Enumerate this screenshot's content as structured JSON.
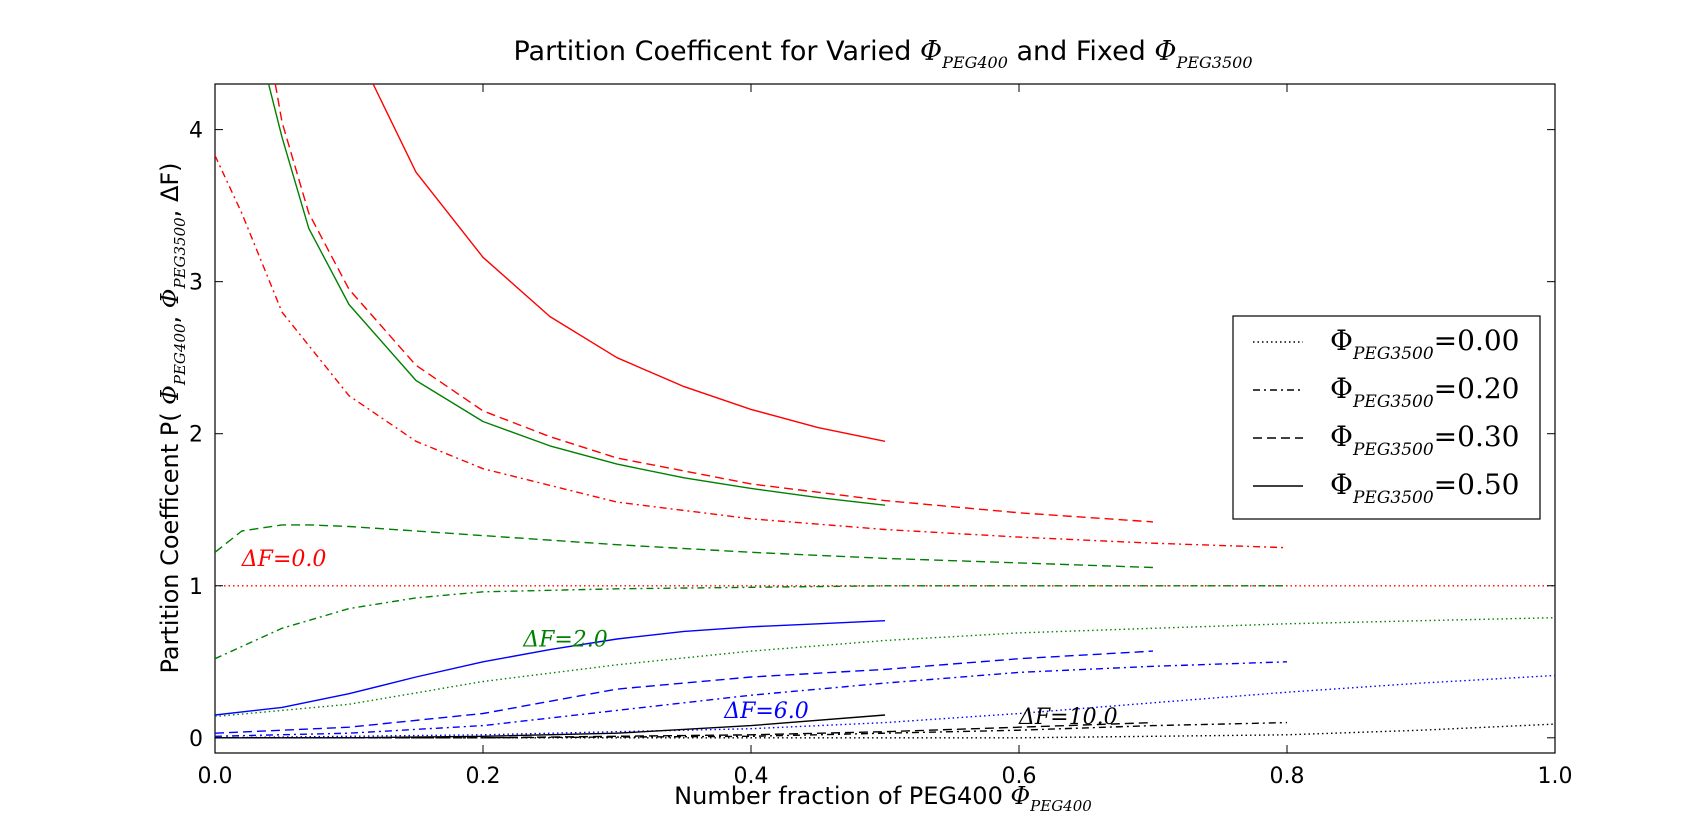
{
  "chart_data": {
    "type": "line",
    "title": {
      "prefix": "Partition Coefficent for Varied ",
      "sym1": "Φ",
      "sub1": "PEG400",
      "middle": " and Fixed ",
      "sym2": "Φ",
      "sub2": "PEG3500"
    },
    "xlabel": {
      "text": "Number fraction of PEG400 ",
      "sym": "Φ",
      "sub": "PEG400"
    },
    "ylabel": {
      "prefix": "Partition Coefficent  P( ",
      "sym1": "Φ",
      "sub1": "PEG400",
      "sep1": ", ",
      "sym2": "Φ",
      "sub2": "PEG3500",
      "suffix": ",  ΔF)"
    },
    "xlim": [
      0.0,
      1.0
    ],
    "ylim": [
      -0.1,
      4.3
    ],
    "xticks": [
      0.0,
      0.2,
      0.4,
      0.6,
      0.8,
      1.0
    ],
    "xtick_labels": [
      "0.0",
      "0.2",
      "0.4",
      "0.6",
      "0.8",
      "1.0"
    ],
    "yticks": [
      0,
      1,
      2,
      3,
      4
    ],
    "ytick_labels": [
      "0",
      "1",
      "2",
      "3",
      "4"
    ],
    "grid": false,
    "legend_position": "right",
    "legend": [
      {
        "sym": "Φ",
        "sub": "PEG3500",
        "eq": "=0.00",
        "style": "dotted"
      },
      {
        "sym": "Φ",
        "sub": "PEG3500",
        "eq": "=0.20",
        "style": "dashdot"
      },
      {
        "sym": "Φ",
        "sub": "PEG3500",
        "eq": "=0.30",
        "style": "dashed"
      },
      {
        "sym": "Φ",
        "sub": "PEG3500",
        "eq": "=0.50",
        "style": "solid"
      }
    ],
    "annotations": [
      {
        "text": "ΔF=0.0",
        "x": 0.02,
        "y": 1.13,
        "color": "#ff0000"
      },
      {
        "text": "ΔF=2.0",
        "x": 0.23,
        "y": 0.6,
        "color": "#008000"
      },
      {
        "text": "ΔF=6.0",
        "x": 0.38,
        "y": 0.13,
        "color": "#0000ff"
      },
      {
        "text": "ΔF=10.0",
        "x": 0.6,
        "y": 0.09,
        "color": "#000000"
      }
    ],
    "series": [
      {
        "deltaF": 0.0,
        "phi3500": 0.0,
        "color": "#ff0000",
        "style": "dotted",
        "x": [
          0.0,
          0.2,
          0.4,
          0.6,
          0.8,
          1.0
        ],
        "y": [
          1.0,
          1.0,
          1.0,
          1.0,
          1.0,
          1.0
        ]
      },
      {
        "deltaF": 0.0,
        "phi3500": 0.2,
        "color": "#ff0000",
        "style": "dashdot",
        "x": [
          0.0,
          0.02,
          0.05,
          0.1,
          0.15,
          0.2,
          0.3,
          0.4,
          0.5,
          0.6,
          0.7,
          0.8
        ],
        "y": [
          3.83,
          3.45,
          2.8,
          2.25,
          1.95,
          1.77,
          1.55,
          1.44,
          1.37,
          1.32,
          1.28,
          1.25
        ]
      },
      {
        "deltaF": 0.0,
        "phi3500": 0.3,
        "color": "#ff0000",
        "style": "dashed",
        "x": [
          0.045,
          0.05,
          0.07,
          0.1,
          0.15,
          0.2,
          0.25,
          0.3,
          0.4,
          0.5,
          0.6,
          0.7
        ],
        "y": [
          4.3,
          4.05,
          3.45,
          2.95,
          2.45,
          2.15,
          1.98,
          1.84,
          1.67,
          1.56,
          1.48,
          1.42
        ]
      },
      {
        "deltaF": 0.0,
        "phi3500": 0.5,
        "color": "#ff0000",
        "style": "solid",
        "x": [
          0.118,
          0.15,
          0.2,
          0.25,
          0.3,
          0.35,
          0.4,
          0.45,
          0.5
        ],
        "y": [
          4.3,
          3.72,
          3.16,
          2.77,
          2.5,
          2.31,
          2.16,
          2.04,
          1.95
        ]
      },
      {
        "deltaF": 2.0,
        "phi3500": 0.0,
        "color": "#008000",
        "style": "dotted",
        "x": [
          0.0,
          0.1,
          0.2,
          0.3,
          0.4,
          0.5,
          0.6,
          0.7,
          0.8,
          0.9,
          1.0
        ],
        "y": [
          0.14,
          0.22,
          0.37,
          0.48,
          0.57,
          0.64,
          0.69,
          0.72,
          0.75,
          0.77,
          0.79
        ]
      },
      {
        "deltaF": 2.0,
        "phi3500": 0.2,
        "color": "#008000",
        "style": "dashdot",
        "x": [
          0.0,
          0.05,
          0.1,
          0.15,
          0.2,
          0.3,
          0.4,
          0.5,
          0.6,
          0.7,
          0.8
        ],
        "y": [
          0.52,
          0.72,
          0.85,
          0.92,
          0.96,
          0.98,
          0.99,
          1.0,
          1.0,
          1.0,
          1.0
        ]
      },
      {
        "deltaF": 2.0,
        "phi3500": 0.3,
        "color": "#008000",
        "style": "dashed",
        "x": [
          0.0,
          0.02,
          0.05,
          0.07,
          0.1,
          0.15,
          0.2,
          0.3,
          0.4,
          0.5,
          0.6,
          0.7
        ],
        "y": [
          1.22,
          1.36,
          1.4,
          1.4,
          1.39,
          1.36,
          1.33,
          1.27,
          1.22,
          1.18,
          1.15,
          1.12
        ]
      },
      {
        "deltaF": 2.0,
        "phi3500": 0.5,
        "color": "#008000",
        "style": "solid",
        "x": [
          0.04,
          0.05,
          0.07,
          0.1,
          0.15,
          0.2,
          0.25,
          0.3,
          0.35,
          0.4,
          0.45,
          0.5
        ],
        "y": [
          4.3,
          3.95,
          3.35,
          2.85,
          2.35,
          2.08,
          1.92,
          1.8,
          1.71,
          1.64,
          1.58,
          1.53
        ]
      },
      {
        "deltaF": 6.0,
        "phi3500": 0.0,
        "color": "#0000ff",
        "style": "dotted",
        "x": [
          0.0,
          0.1,
          0.2,
          0.3,
          0.4,
          0.5,
          0.6,
          0.7,
          0.8,
          0.9,
          1.0
        ],
        "y": [
          0.0,
          0.01,
          0.02,
          0.04,
          0.06,
          0.1,
          0.16,
          0.23,
          0.3,
          0.36,
          0.41
        ]
      },
      {
        "deltaF": 6.0,
        "phi3500": 0.2,
        "color": "#0000ff",
        "style": "dashdot",
        "x": [
          0.0,
          0.1,
          0.2,
          0.3,
          0.4,
          0.5,
          0.6,
          0.7,
          0.8
        ],
        "y": [
          0.01,
          0.03,
          0.08,
          0.18,
          0.28,
          0.36,
          0.43,
          0.47,
          0.5
        ]
      },
      {
        "deltaF": 6.0,
        "phi3500": 0.3,
        "color": "#0000ff",
        "style": "dashed",
        "x": [
          0.0,
          0.1,
          0.2,
          0.25,
          0.3,
          0.4,
          0.5,
          0.6,
          0.7
        ],
        "y": [
          0.03,
          0.07,
          0.16,
          0.24,
          0.32,
          0.4,
          0.45,
          0.52,
          0.57
        ]
      },
      {
        "deltaF": 6.0,
        "phi3500": 0.5,
        "color": "#0000ff",
        "style": "solid",
        "x": [
          0.0,
          0.05,
          0.1,
          0.15,
          0.2,
          0.25,
          0.3,
          0.35,
          0.4,
          0.45,
          0.5
        ],
        "y": [
          0.15,
          0.2,
          0.29,
          0.4,
          0.5,
          0.58,
          0.65,
          0.7,
          0.73,
          0.75,
          0.77
        ]
      },
      {
        "deltaF": 10.0,
        "phi3500": 0.0,
        "color": "#000000",
        "style": "dotted",
        "x": [
          0.0,
          0.2,
          0.4,
          0.6,
          0.7,
          0.8,
          0.9,
          1.0
        ],
        "y": [
          0.0,
          0.0,
          0.0,
          0.0,
          0.01,
          0.02,
          0.05,
          0.09
        ]
      },
      {
        "deltaF": 10.0,
        "phi3500": 0.2,
        "color": "#000000",
        "style": "dashdot",
        "x": [
          0.0,
          0.2,
          0.4,
          0.5,
          0.6,
          0.7,
          0.8
        ],
        "y": [
          0.0,
          0.0,
          0.01,
          0.03,
          0.05,
          0.08,
          0.1
        ]
      },
      {
        "deltaF": 10.0,
        "phi3500": 0.3,
        "color": "#000000",
        "style": "dashed",
        "x": [
          0.0,
          0.2,
          0.4,
          0.5,
          0.6,
          0.7
        ],
        "y": [
          0.0,
          0.0,
          0.02,
          0.04,
          0.07,
          0.1
        ]
      },
      {
        "deltaF": 10.0,
        "phi3500": 0.5,
        "color": "#000000",
        "style": "solid",
        "x": [
          0.0,
          0.1,
          0.2,
          0.3,
          0.4,
          0.5
        ],
        "y": [
          0.0,
          0.0,
          0.01,
          0.03,
          0.08,
          0.15
        ]
      }
    ]
  }
}
